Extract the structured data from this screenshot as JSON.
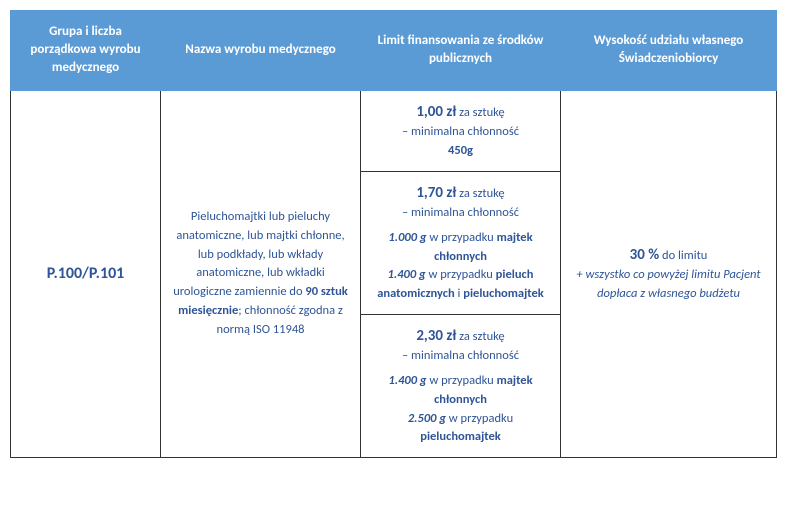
{
  "header": {
    "col1": "Grupa i liczba porządkowa wyrobu medycznego",
    "col2": "Nazwa wyrobu medycznego",
    "col3": "Limit finansowania ze środków publicznych",
    "col4": "Wysokość udziału własnego Świadczeniobiorcy"
  },
  "body": {
    "code": "P.100/P.101",
    "productName": {
      "part1": "Pieluchomajtki lub pieluchy anatomiczne, lub majtki chłonne, lub podkłady, lub wkłady anatomiczne, lub wkładki urologiczne zamiennie do ",
      "boldQty": "90 sztuk miesięcznie",
      "part2": "; chłonność zgodna z normą ISO 11948"
    },
    "limits": [
      {
        "price": "1,00 zł",
        "unit": " za sztukę",
        "sub1": "– minimalna chłonność",
        "bold450": "450g"
      },
      {
        "price": "1,70 zł",
        "unit": " za sztukę",
        "sub1": "– minimalna chłonność",
        "w1000": "1.000 g",
        "w1000txt": " w przypadku ",
        "w1000b": "majtek chłonnych",
        "w1400": "1.400 g",
        "w1400txt": " w przypadku ",
        "w1400b1": "pieluch anatomicznych",
        "and": " i ",
        "w1400b2": "pieluchomajtek"
      },
      {
        "price": "2,30 zł",
        "unit": " za sztukę",
        "sub1": "– minimalna chłonność",
        "w1400": "1.400 g",
        "w1400txt": " w przypadku ",
        "w1400b": "majtek chłonnych",
        "w2500": "2.500 g",
        "w2500txt": " w przypadku ",
        "w2500b": "pieluchomajtek"
      }
    ],
    "share": {
      "percent": "30 %",
      "percentTxt": " do limitu",
      "note": "+ wszystko co powyżej limitu Pacjent dopłaca z własnego budżetu"
    }
  },
  "style": {
    "headerBg": "#5b9bd5",
    "headerText": "#ffffff",
    "bodyText": "#2f5597",
    "border": "#333333",
    "colWidths": [
      "150px",
      "200px",
      "200px",
      "216px"
    ]
  }
}
